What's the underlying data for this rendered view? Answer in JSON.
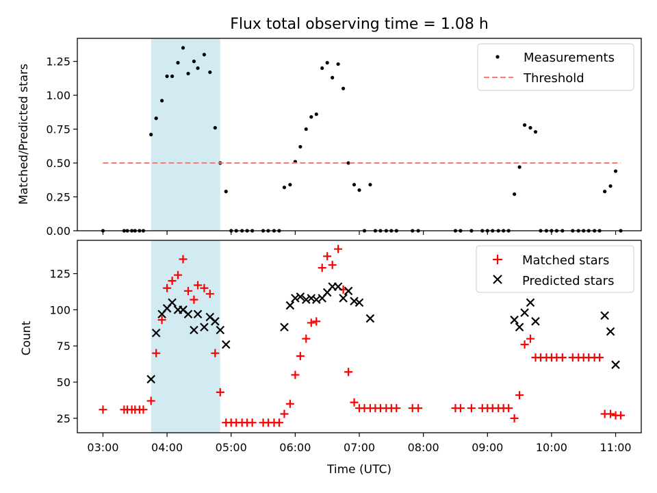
{
  "chart_data": [
    {
      "type": "scatter",
      "title": "Flux total observing time = 1.08 h",
      "xlabel": "",
      "ylabel": "Matched/Predicted stars",
      "xlim": [
        2.6,
        11.4
      ],
      "ylim": [
        0.0,
        1.42
      ],
      "yticks": [
        "0.00",
        "0.25",
        "0.50",
        "0.75",
        "1.00",
        "1.25"
      ],
      "grid": false,
      "legend": "top-right",
      "shaded_interval": {
        "x": [
          3.75,
          4.83
        ],
        "color": "#add8e6"
      },
      "series": [
        {
          "name": "Measurements",
          "marker": "dot",
          "color": "#000000",
          "points": [
            [
              3.0,
              0.0
            ],
            [
              3.33,
              0.0
            ],
            [
              3.38,
              0.0
            ],
            [
              3.45,
              0.0
            ],
            [
              3.5,
              0.0
            ],
            [
              3.57,
              0.0
            ],
            [
              3.63,
              0.0
            ],
            [
              3.75,
              0.71
            ],
            [
              3.83,
              0.83
            ],
            [
              3.92,
              0.96
            ],
            [
              4.0,
              1.14
            ],
            [
              4.08,
              1.14
            ],
            [
              4.17,
              1.24
            ],
            [
              4.25,
              1.35
            ],
            [
              4.33,
              1.16
            ],
            [
              4.42,
              1.25
            ],
            [
              4.48,
              1.2
            ],
            [
              4.58,
              1.3
            ],
            [
              4.67,
              1.17
            ],
            [
              4.75,
              0.76
            ],
            [
              4.83,
              0.5
            ],
            [
              4.92,
              0.29
            ],
            [
              5.0,
              0.0
            ],
            [
              5.08,
              0.0
            ],
            [
              5.17,
              0.0
            ],
            [
              5.25,
              0.0
            ],
            [
              5.33,
              0.0
            ],
            [
              5.5,
              0.0
            ],
            [
              5.58,
              0.0
            ],
            [
              5.67,
              0.0
            ],
            [
              5.75,
              0.0
            ],
            [
              5.83,
              0.32
            ],
            [
              5.92,
              0.34
            ],
            [
              6.0,
              0.51
            ],
            [
              6.08,
              0.62
            ],
            [
              6.17,
              0.75
            ],
            [
              6.25,
              0.84
            ],
            [
              6.33,
              0.86
            ],
            [
              6.42,
              1.2
            ],
            [
              6.5,
              1.24
            ],
            [
              6.58,
              1.13
            ],
            [
              6.67,
              1.23
            ],
            [
              6.75,
              1.05
            ],
            [
              6.83,
              0.5
            ],
            [
              6.92,
              0.34
            ],
            [
              7.0,
              0.3
            ],
            [
              7.08,
              0.0
            ],
            [
              7.17,
              0.34
            ],
            [
              7.25,
              0.0
            ],
            [
              7.33,
              0.0
            ],
            [
              7.42,
              0.0
            ],
            [
              7.5,
              0.0
            ],
            [
              7.58,
              0.0
            ],
            [
              7.83,
              0.0
            ],
            [
              7.92,
              0.0
            ],
            [
              8.5,
              0.0
            ],
            [
              8.58,
              0.0
            ],
            [
              8.75,
              0.0
            ],
            [
              8.92,
              0.0
            ],
            [
              9.0,
              0.0
            ],
            [
              9.08,
              0.0
            ],
            [
              9.17,
              0.0
            ],
            [
              9.25,
              0.0
            ],
            [
              9.33,
              0.0
            ],
            [
              9.42,
              0.27
            ],
            [
              9.5,
              0.47
            ],
            [
              9.58,
              0.78
            ],
            [
              9.67,
              0.76
            ],
            [
              9.75,
              0.73
            ],
            [
              9.83,
              0.0
            ],
            [
              9.92,
              0.0
            ],
            [
              10.0,
              0.0
            ],
            [
              10.08,
              0.0
            ],
            [
              10.17,
              0.0
            ],
            [
              10.33,
              0.0
            ],
            [
              10.42,
              0.0
            ],
            [
              10.5,
              0.0
            ],
            [
              10.58,
              0.0
            ],
            [
              10.67,
              0.0
            ],
            [
              10.75,
              0.0
            ],
            [
              10.83,
              0.29
            ],
            [
              10.92,
              0.33
            ],
            [
              11.0,
              0.44
            ],
            [
              11.08,
              0.0
            ]
          ]
        },
        {
          "name": "Threshold",
          "style": "dashed",
          "color": "#ff7777",
          "points": [
            [
              3.0,
              0.5
            ],
            [
              11.08,
              0.5
            ]
          ]
        }
      ]
    },
    {
      "type": "scatter",
      "title": "",
      "xlabel": "Time (UTC)",
      "ylabel": "Count",
      "xlim": [
        2.6,
        11.4
      ],
      "ylim": [
        15,
        148
      ],
      "yticks": [
        "25",
        "50",
        "75",
        "100",
        "125"
      ],
      "xticks": [
        "03:00",
        "04:00",
        "05:00",
        "06:00",
        "07:00",
        "08:00",
        "09:00",
        "10:00",
        "11:00"
      ],
      "grid": false,
      "legend": "top-right",
      "shaded_interval": {
        "x": [
          3.75,
          4.83
        ],
        "color": "#add8e6"
      },
      "series": [
        {
          "name": "Matched stars",
          "marker": "plus",
          "color": "#ff0000",
          "points": [
            [
              3.0,
              31
            ],
            [
              3.33,
              31
            ],
            [
              3.38,
              31
            ],
            [
              3.45,
              31
            ],
            [
              3.5,
              31
            ],
            [
              3.57,
              31
            ],
            [
              3.63,
              31
            ],
            [
              3.75,
              37
            ],
            [
              3.83,
              70
            ],
            [
              3.92,
              93
            ],
            [
              4.0,
              115
            ],
            [
              4.08,
              120
            ],
            [
              4.17,
              124
            ],
            [
              4.25,
              135
            ],
            [
              4.33,
              113
            ],
            [
              4.42,
              107
            ],
            [
              4.48,
              117
            ],
            [
              4.58,
              115
            ],
            [
              4.67,
              111
            ],
            [
              4.75,
              70
            ],
            [
              4.83,
              43
            ],
            [
              4.92,
              22
            ],
            [
              5.0,
              22
            ],
            [
              5.08,
              22
            ],
            [
              5.17,
              22
            ],
            [
              5.25,
              22
            ],
            [
              5.33,
              22
            ],
            [
              5.5,
              22
            ],
            [
              5.58,
              22
            ],
            [
              5.67,
              22
            ],
            [
              5.75,
              22
            ],
            [
              5.83,
              28
            ],
            [
              5.92,
              35
            ],
            [
              6.0,
              55
            ],
            [
              6.08,
              68
            ],
            [
              6.17,
              80
            ],
            [
              6.25,
              91
            ],
            [
              6.33,
              92
            ],
            [
              6.42,
              129
            ],
            [
              6.5,
              137
            ],
            [
              6.58,
              131
            ],
            [
              6.67,
              142
            ],
            [
              6.75,
              114
            ],
            [
              6.83,
              57
            ],
            [
              6.92,
              36
            ],
            [
              7.0,
              32
            ],
            [
              7.08,
              32
            ],
            [
              7.17,
              32
            ],
            [
              7.25,
              32
            ],
            [
              7.33,
              32
            ],
            [
              7.42,
              32
            ],
            [
              7.5,
              32
            ],
            [
              7.58,
              32
            ],
            [
              7.83,
              32
            ],
            [
              7.92,
              32
            ],
            [
              8.5,
              32
            ],
            [
              8.58,
              32
            ],
            [
              8.75,
              32
            ],
            [
              8.92,
              32
            ],
            [
              9.0,
              32
            ],
            [
              9.08,
              32
            ],
            [
              9.17,
              32
            ],
            [
              9.25,
              32
            ],
            [
              9.33,
              32
            ],
            [
              9.42,
              25
            ],
            [
              9.5,
              41
            ],
            [
              9.58,
              76
            ],
            [
              9.67,
              80
            ],
            [
              9.75,
              67
            ],
            [
              9.83,
              67
            ],
            [
              9.92,
              67
            ],
            [
              10.0,
              67
            ],
            [
              10.08,
              67
            ],
            [
              10.17,
              67
            ],
            [
              10.33,
              67
            ],
            [
              10.42,
              67
            ],
            [
              10.5,
              67
            ],
            [
              10.58,
              67
            ],
            [
              10.67,
              67
            ],
            [
              10.75,
              67
            ],
            [
              10.83,
              28
            ],
            [
              10.92,
              28
            ],
            [
              11.0,
              27
            ],
            [
              11.08,
              27
            ]
          ]
        },
        {
          "name": "Predicted stars",
          "marker": "x",
          "color": "#000000",
          "points": [
            [
              3.75,
              52
            ],
            [
              3.83,
              84
            ],
            [
              3.92,
              97
            ],
            [
              4.0,
              101
            ],
            [
              4.08,
              105
            ],
            [
              4.17,
              100
            ],
            [
              4.25,
              100
            ],
            [
              4.33,
              97
            ],
            [
              4.42,
              86
            ],
            [
              4.48,
              97
            ],
            [
              4.58,
              88
            ],
            [
              4.67,
              95
            ],
            [
              4.75,
              92
            ],
            [
              4.83,
              86
            ],
            [
              4.92,
              76
            ],
            [
              5.83,
              88
            ],
            [
              5.92,
              103
            ],
            [
              6.0,
              108
            ],
            [
              6.08,
              109
            ],
            [
              6.17,
              107
            ],
            [
              6.25,
              108
            ],
            [
              6.33,
              107
            ],
            [
              6.42,
              108
            ],
            [
              6.5,
              112
            ],
            [
              6.58,
              116
            ],
            [
              6.67,
              116
            ],
            [
              6.75,
              108
            ],
            [
              6.83,
              113
            ],
            [
              6.92,
              106
            ],
            [
              7.0,
              105
            ],
            [
              7.17,
              94
            ],
            [
              9.42,
              93
            ],
            [
              9.5,
              88
            ],
            [
              9.58,
              98
            ],
            [
              9.67,
              105
            ],
            [
              9.75,
              92
            ],
            [
              10.83,
              96
            ],
            [
              10.92,
              85
            ],
            [
              11.0,
              62
            ]
          ]
        }
      ]
    }
  ]
}
